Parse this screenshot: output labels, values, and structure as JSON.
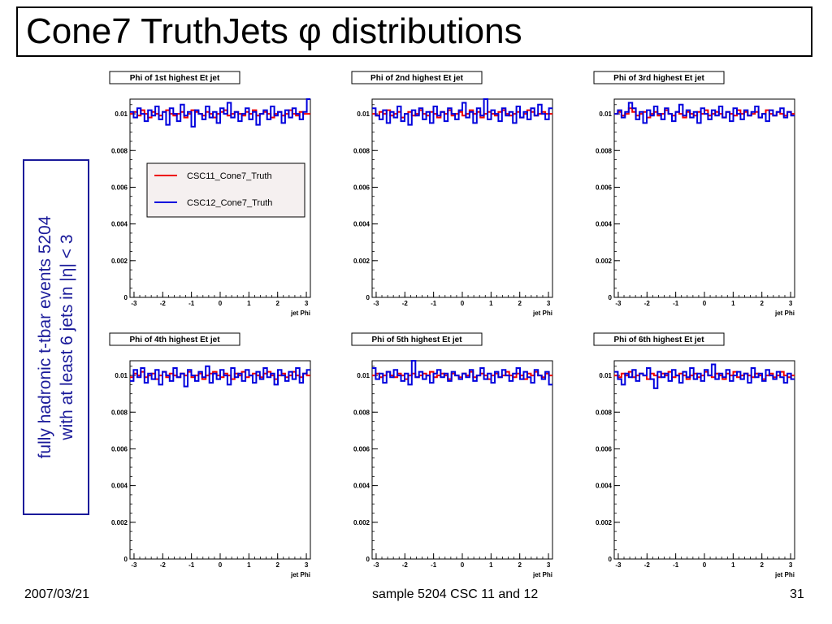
{
  "page": {
    "title": "Cone7 TruthJets φ distributions",
    "side_text": [
      "fully hadronic t-tbar events 5204",
      "with at least 6 jets in |η| < 3"
    ],
    "footer_date": "2007/03/21",
    "footer_center": "sample 5204 CSC 11 and 12",
    "footer_page": "31"
  },
  "chart_data": [
    {
      "type": "line",
      "title": "Phi of 1st highest Et jet",
      "xlabel": "jet Phi",
      "ylabel": "",
      "xlim": [
        -3.14,
        3.14
      ],
      "ylim": [
        0,
        0.0108
      ],
      "bins": 50,
      "xticks": [
        "-3",
        "-2",
        "-1",
        "0",
        "1",
        "2",
        "3"
      ],
      "yticks": [
        "0",
        "0.002",
        "0.004",
        "0.006",
        "0.008",
        "0.01"
      ],
      "legend": "inside-upper-left",
      "series": [
        {
          "name": "CSC11_Cone7_Truth",
          "color": "#ee0000",
          "values": [
            0.01,
            0.0101,
            0.0099,
            0.0102,
            0.01,
            0.0098,
            0.0101,
            0.01,
            0.0099,
            0.0101,
            0.0102,
            0.01,
            0.0099,
            0.01,
            0.0101,
            0.0098,
            0.01,
            0.0102,
            0.0101,
            0.01,
            0.0099,
            0.0101,
            0.01,
            0.0098,
            0.01,
            0.0101,
            0.0102,
            0.0099,
            0.01,
            0.0101,
            0.01,
            0.0099,
            0.0101,
            0.01,
            0.0102,
            0.0099,
            0.01,
            0.0101,
            0.01,
            0.0098,
            0.01,
            0.0101,
            0.0099,
            0.01,
            0.0102,
            0.01,
            0.0099,
            0.0101,
            0.01,
            0.01
          ]
        },
        {
          "name": "CSC12_Cone7_Truth",
          "color": "#0000dd",
          "values": [
            0.0101,
            0.0098,
            0.0103,
            0.01,
            0.0096,
            0.0102,
            0.0099,
            0.0104,
            0.0097,
            0.0101,
            0.0094,
            0.0103,
            0.01,
            0.0096,
            0.0105,
            0.0099,
            0.0101,
            0.0093,
            0.0102,
            0.01,
            0.0097,
            0.0104,
            0.0098,
            0.0101,
            0.0095,
            0.0103,
            0.01,
            0.0106,
            0.0098,
            0.0101,
            0.0096,
            0.01,
            0.0103,
            0.0097,
            0.0101,
            0.0094,
            0.01,
            0.0102,
            0.0097,
            0.0104,
            0.0099,
            0.0101,
            0.0095,
            0.0102,
            0.0098,
            0.0103,
            0.01,
            0.0097,
            0.0101,
            0.0108
          ]
        }
      ]
    },
    {
      "type": "line",
      "title": "Phi of 2nd highest Et jet",
      "xlabel": "jet Phi",
      "ylabel": "",
      "xlim": [
        -3.14,
        3.14
      ],
      "ylim": [
        0,
        0.0108
      ],
      "bins": 50,
      "xticks": [
        "-3",
        "-2",
        "-1",
        "0",
        "1",
        "2",
        "3"
      ],
      "yticks": [
        "0",
        "0.002",
        "0.004",
        "0.006",
        "0.008",
        "0.01"
      ],
      "series": [
        {
          "name": "CSC11_Cone7_Truth",
          "color": "#ee0000",
          "values": [
            0.01,
            0.0099,
            0.0101,
            0.01,
            0.0102,
            0.0099,
            0.01,
            0.0101,
            0.0098,
            0.01,
            0.0101,
            0.0099,
            0.01,
            0.0102,
            0.01,
            0.0099,
            0.0101,
            0.01,
            0.0098,
            0.0101,
            0.01,
            0.0102,
            0.0099,
            0.01,
            0.0101,
            0.0099,
            0.01,
            0.0102,
            0.01,
            0.0101,
            0.0098,
            0.01,
            0.0101,
            0.01,
            0.0099,
            0.0101,
            0.0102,
            0.01,
            0.0099,
            0.01,
            0.0101,
            0.0098,
            0.01,
            0.0102,
            0.0101,
            0.0099,
            0.01,
            0.0101,
            0.01,
            0.01
          ]
        },
        {
          "name": "CSC12_Cone7_Truth",
          "color": "#0000dd",
          "values": [
            0.0103,
            0.0099,
            0.0097,
            0.0102,
            0.0095,
            0.0101,
            0.0098,
            0.0104,
            0.0096,
            0.01,
            0.0094,
            0.0102,
            0.0099,
            0.0103,
            0.0097,
            0.0101,
            0.0095,
            0.0104,
            0.0099,
            0.0101,
            0.0096,
            0.0103,
            0.01,
            0.0097,
            0.0102,
            0.0106,
            0.0098,
            0.0101,
            0.0095,
            0.0103,
            0.0099,
            0.0108,
            0.0097,
            0.0102,
            0.01,
            0.0096,
            0.0103,
            0.0099,
            0.0101,
            0.0095,
            0.0104,
            0.0098,
            0.0101,
            0.0097,
            0.0103,
            0.0099,
            0.0105,
            0.01,
            0.0097,
            0.0103
          ]
        }
      ]
    },
    {
      "type": "line",
      "title": "Phi of 3rd highest Et jet",
      "xlabel": "jet Phi",
      "ylabel": "",
      "xlim": [
        -3.14,
        3.14
      ],
      "ylim": [
        0,
        0.0108
      ],
      "bins": 50,
      "xticks": [
        "-3",
        "-2",
        "-1",
        "0",
        "1",
        "2",
        "3"
      ],
      "yticks": [
        "0",
        "0.002",
        "0.004",
        "0.006",
        "0.008",
        "0.01"
      ],
      "series": [
        {
          "name": "CSC11_Cone7_Truth",
          "color": "#ee0000",
          "values": [
            0.01,
            0.0101,
            0.0099,
            0.01,
            0.0103,
            0.0101,
            0.0099,
            0.01,
            0.0101,
            0.0098,
            0.01,
            0.0101,
            0.0099,
            0.01,
            0.0102,
            0.01,
            0.0099,
            0.0101,
            0.01,
            0.0098,
            0.0101,
            0.01,
            0.0099,
            0.0101,
            0.01,
            0.0102,
            0.0099,
            0.01,
            0.0101,
            0.01,
            0.0098,
            0.0101,
            0.01,
            0.0099,
            0.0102,
            0.01,
            0.0101,
            0.0099,
            0.01,
            0.0101,
            0.0098,
            0.01,
            0.0102,
            0.01,
            0.0099,
            0.0101,
            0.01,
            0.0099,
            0.0101,
            0.01
          ]
        },
        {
          "name": "CSC12_Cone7_Truth",
          "color": "#0000dd",
          "values": [
            0.01,
            0.0102,
            0.0098,
            0.0101,
            0.0106,
            0.0103,
            0.0097,
            0.0101,
            0.0095,
            0.0102,
            0.0099,
            0.0104,
            0.01,
            0.0097,
            0.0103,
            0.01,
            0.0096,
            0.0101,
            0.0105,
            0.0099,
            0.0102,
            0.0098,
            0.0101,
            0.0095,
            0.0103,
            0.01,
            0.0097,
            0.0102,
            0.0099,
            0.0104,
            0.0098,
            0.0101,
            0.0096,
            0.0103,
            0.01,
            0.0097,
            0.0102,
            0.0099,
            0.0101,
            0.0104,
            0.0098,
            0.01,
            0.0096,
            0.0102,
            0.0099,
            0.0101,
            0.0103,
            0.0098,
            0.0101,
            0.0099
          ]
        }
      ]
    },
    {
      "type": "line",
      "title": "Phi of 4th highest Et jet",
      "xlabel": "jet Phi",
      "ylabel": "",
      "xlim": [
        -3.14,
        3.14
      ],
      "ylim": [
        0,
        0.0108
      ],
      "bins": 50,
      "xticks": [
        "-3",
        "-2",
        "-1",
        "0",
        "1",
        "2",
        "3"
      ],
      "yticks": [
        "0",
        "0.002",
        "0.004",
        "0.006",
        "0.008",
        "0.01"
      ],
      "series": [
        {
          "name": "CSC11_Cone7_Truth",
          "color": "#ee0000",
          "values": [
            0.0099,
            0.0101,
            0.01,
            0.0102,
            0.0099,
            0.01,
            0.0101,
            0.0098,
            0.01,
            0.0102,
            0.0099,
            0.0101,
            0.01,
            0.0099,
            0.0101,
            0.01,
            0.0102,
            0.0099,
            0.01,
            0.0101,
            0.0098,
            0.01,
            0.0101,
            0.0102,
            0.01,
            0.0099,
            0.0101,
            0.01,
            0.0098,
            0.0101,
            0.01,
            0.0102,
            0.0099,
            0.01,
            0.0101,
            0.01,
            0.0099,
            0.0101,
            0.0102,
            0.01,
            0.0098,
            0.01,
            0.0101,
            0.0099,
            0.01,
            0.0102,
            0.01,
            0.0099,
            0.0101,
            0.01
          ]
        },
        {
          "name": "CSC12_Cone7_Truth",
          "color": "#0000dd",
          "values": [
            0.0097,
            0.0103,
            0.0099,
            0.0104,
            0.0096,
            0.0101,
            0.0098,
            0.0103,
            0.0095,
            0.0102,
            0.01,
            0.0097,
            0.0104,
            0.0099,
            0.0101,
            0.0094,
            0.0103,
            0.01,
            0.0097,
            0.0102,
            0.0099,
            0.0105,
            0.0096,
            0.0101,
            0.0098,
            0.0103,
            0.01,
            0.0095,
            0.0104,
            0.0099,
            0.0101,
            0.0097,
            0.0103,
            0.01,
            0.0096,
            0.0102,
            0.0098,
            0.0104,
            0.0099,
            0.0101,
            0.0095,
            0.0103,
            0.01,
            0.0097,
            0.0102,
            0.0098,
            0.0104,
            0.0096,
            0.0101,
            0.0103
          ]
        }
      ]
    },
    {
      "type": "line",
      "title": "Phi of 5th highest Et jet",
      "xlabel": "jet Phi",
      "ylabel": "",
      "xlim": [
        -3.14,
        3.14
      ],
      "ylim": [
        0,
        0.0108
      ],
      "bins": 50,
      "xticks": [
        "-3",
        "-2",
        "-1",
        "0",
        "1",
        "2",
        "3"
      ],
      "yticks": [
        "0",
        "0.002",
        "0.004",
        "0.006",
        "0.008",
        "0.01"
      ],
      "series": [
        {
          "name": "CSC11_Cone7_Truth",
          "color": "#ee0000",
          "values": [
            0.01,
            0.0101,
            0.0099,
            0.01,
            0.0102,
            0.01,
            0.0099,
            0.0101,
            0.01,
            0.0098,
            0.01,
            0.0101,
            0.0099,
            0.01,
            0.0101,
            0.01,
            0.0102,
            0.0099,
            0.01,
            0.0101,
            0.01,
            0.0098,
            0.0101,
            0.01,
            0.0099,
            0.0101,
            0.01,
            0.0102,
            0.0099,
            0.01,
            0.0101,
            0.01,
            0.0098,
            0.01,
            0.0101,
            0.0099,
            0.01,
            0.0102,
            0.01,
            0.0099,
            0.0101,
            0.01,
            0.0098,
            0.0101,
            0.01,
            0.0102,
            0.01,
            0.0099,
            0.0101,
            0.01
          ]
        },
        {
          "name": "CSC12_Cone7_Truth",
          "color": "#0000dd",
          "values": [
            0.0104,
            0.0098,
            0.0101,
            0.0096,
            0.0102,
            0.0099,
            0.0103,
            0.01,
            0.0097,
            0.0101,
            0.0095,
            0.0108,
            0.0099,
            0.0102,
            0.0098,
            0.01,
            0.0096,
            0.0101,
            0.0103,
            0.0099,
            0.0101,
            0.0097,
            0.0102,
            0.01,
            0.0098,
            0.0101,
            0.0099,
            0.0103,
            0.0097,
            0.01,
            0.0104,
            0.0098,
            0.0101,
            0.0096,
            0.0102,
            0.0099,
            0.0103,
            0.01,
            0.0097,
            0.0101,
            0.0104,
            0.0098,
            0.0102,
            0.0099,
            0.0096,
            0.0103,
            0.01,
            0.0098,
            0.0102,
            0.0095
          ]
        }
      ]
    },
    {
      "type": "line",
      "title": "Phi of 6th highest Et jet",
      "xlabel": "jet Phi",
      "ylabel": "",
      "xlim": [
        -3.14,
        3.14
      ],
      "ylim": [
        0,
        0.0108
      ],
      "bins": 50,
      "xticks": [
        "-3",
        "-2",
        "-1",
        "0",
        "1",
        "2",
        "3"
      ],
      "yticks": [
        "0",
        "0.002",
        "0.004",
        "0.006",
        "0.008",
        "0.01"
      ],
      "series": [
        {
          "name": "CSC11_Cone7_Truth",
          "color": "#ee0000",
          "values": [
            0.01,
            0.0099,
            0.0101,
            0.01,
            0.0102,
            0.0099,
            0.01,
            0.0101,
            0.01,
            0.0098,
            0.0101,
            0.01,
            0.0099,
            0.0101,
            0.01,
            0.0102,
            0.0099,
            0.01,
            0.0101,
            0.01,
            0.0098,
            0.01,
            0.0101,
            0.0099,
            0.01,
            0.0102,
            0.01,
            0.0099,
            0.0101,
            0.01,
            0.0098,
            0.0101,
            0.01,
            0.0102,
            0.0099,
            0.01,
            0.0101,
            0.01,
            0.0099,
            0.0101,
            0.01,
            0.0098,
            0.01,
            0.0101,
            0.0099,
            0.01,
            0.0102,
            0.01,
            0.0099,
            0.01
          ]
        },
        {
          "name": "CSC12_Cone7_Truth",
          "color": "#0000dd",
          "values": [
            0.0102,
            0.0098,
            0.0095,
            0.0101,
            0.0099,
            0.0103,
            0.0097,
            0.0101,
            0.01,
            0.0104,
            0.0098,
            0.0093,
            0.0102,
            0.0099,
            0.0101,
            0.0097,
            0.0103,
            0.01,
            0.0096,
            0.0102,
            0.0099,
            0.0104,
            0.0098,
            0.0101,
            0.0097,
            0.0103,
            0.01,
            0.0106,
            0.0098,
            0.0101,
            0.0099,
            0.0103,
            0.0097,
            0.01,
            0.0102,
            0.0098,
            0.0101,
            0.0096,
            0.0104,
            0.0099,
            0.0101,
            0.0097,
            0.0103,
            0.01,
            0.0098,
            0.0102,
            0.0099,
            0.0096,
            0.0101,
            0.0098
          ]
        }
      ]
    }
  ]
}
